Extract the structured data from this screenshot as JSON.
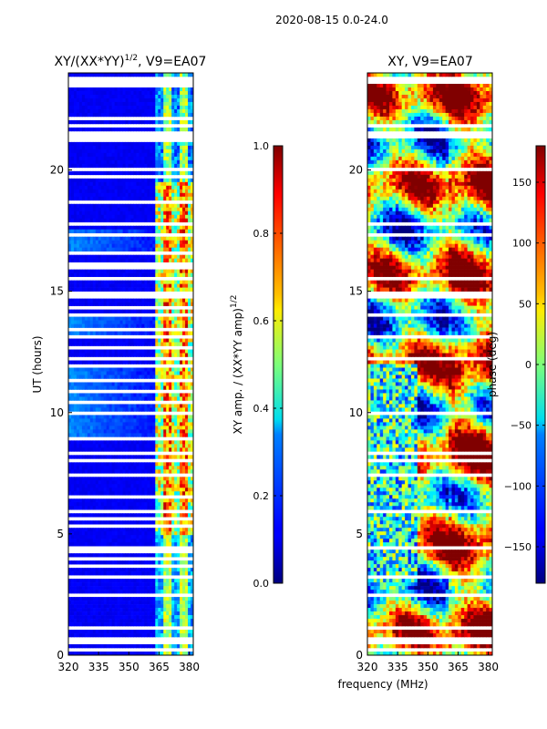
{
  "figure": {
    "suptitle": "2020-08-15 0.0-24.0",
    "xlabel": "frequency (MHz)"
  },
  "chart_data": [
    {
      "type": "heatmap",
      "title": "XY/(XX*YY)",
      "title_exponent": "1/2",
      "title_suffix": ", V9=EA07",
      "ylabel": "UT (hours)",
      "xlim": [
        320,
        382
      ],
      "ylim": [
        0,
        24
      ],
      "xticks": [
        320,
        335,
        350,
        365,
        380
      ],
      "yticks": [
        0,
        5,
        10,
        15,
        20
      ],
      "value_field": "normalized XY amplitude",
      "colorbar": {
        "label": "XY amp. / (XX*YY amp)",
        "label_exponent": "1/2",
        "range": [
          0.0,
          1.0
        ],
        "ticks": [
          "0.0",
          "0.2",
          "0.4",
          "0.6",
          "0.8",
          "1.0"
        ],
        "tick_values": [
          0.0,
          0.2,
          0.4,
          0.6,
          0.8,
          1.0
        ],
        "colormap": "jet"
      }
    },
    {
      "type": "heatmap",
      "title": "XY, V9=EA07",
      "ylabel": "",
      "xlim": [
        320,
        382
      ],
      "ylim": [
        0,
        24
      ],
      "xticks": [
        320,
        335,
        350,
        365,
        380
      ],
      "yticks": [
        0,
        5,
        10,
        15,
        20
      ],
      "value_field": "XY phase (deg)",
      "colorbar": {
        "label": "phase (deg)",
        "range": [
          -180,
          180
        ],
        "ticks": [
          "-150",
          "-100",
          "-50",
          "0",
          "50",
          "100",
          "150"
        ],
        "tick_values": [
          -150,
          -100,
          -50,
          0,
          50,
          100,
          150
        ],
        "colormap": "jet"
      }
    }
  ]
}
